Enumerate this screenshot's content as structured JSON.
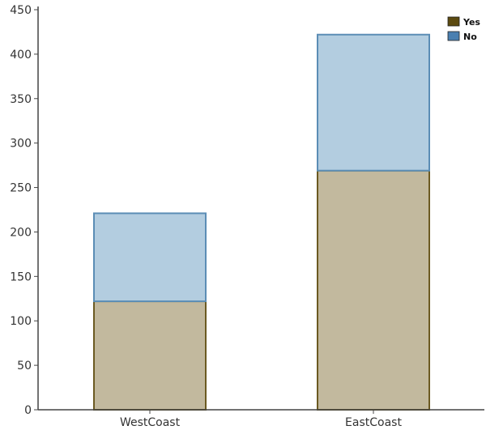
{
  "chart_data": {
    "type": "bar",
    "stacked": true,
    "categories": [
      "WestCoast",
      "EastCoast"
    ],
    "series": [
      {
        "name": "Yes",
        "values": [
          122,
          269
        ],
        "fill": "#c2b99e",
        "stroke": "#6b5a22",
        "legend_color": "#5c4a10"
      },
      {
        "name": "No",
        "values": [
          99,
          153
        ],
        "fill": "#b3cde0",
        "stroke": "#5b8db5",
        "legend_color": "#4a7fb0"
      }
    ],
    "title": "",
    "xlabel": "",
    "ylabel": "",
    "ylim": [
      0,
      450
    ],
    "yticks": [
      0,
      50,
      100,
      150,
      200,
      250,
      300,
      350,
      400,
      450
    ],
    "grid": false,
    "legend_position": "top-right"
  }
}
